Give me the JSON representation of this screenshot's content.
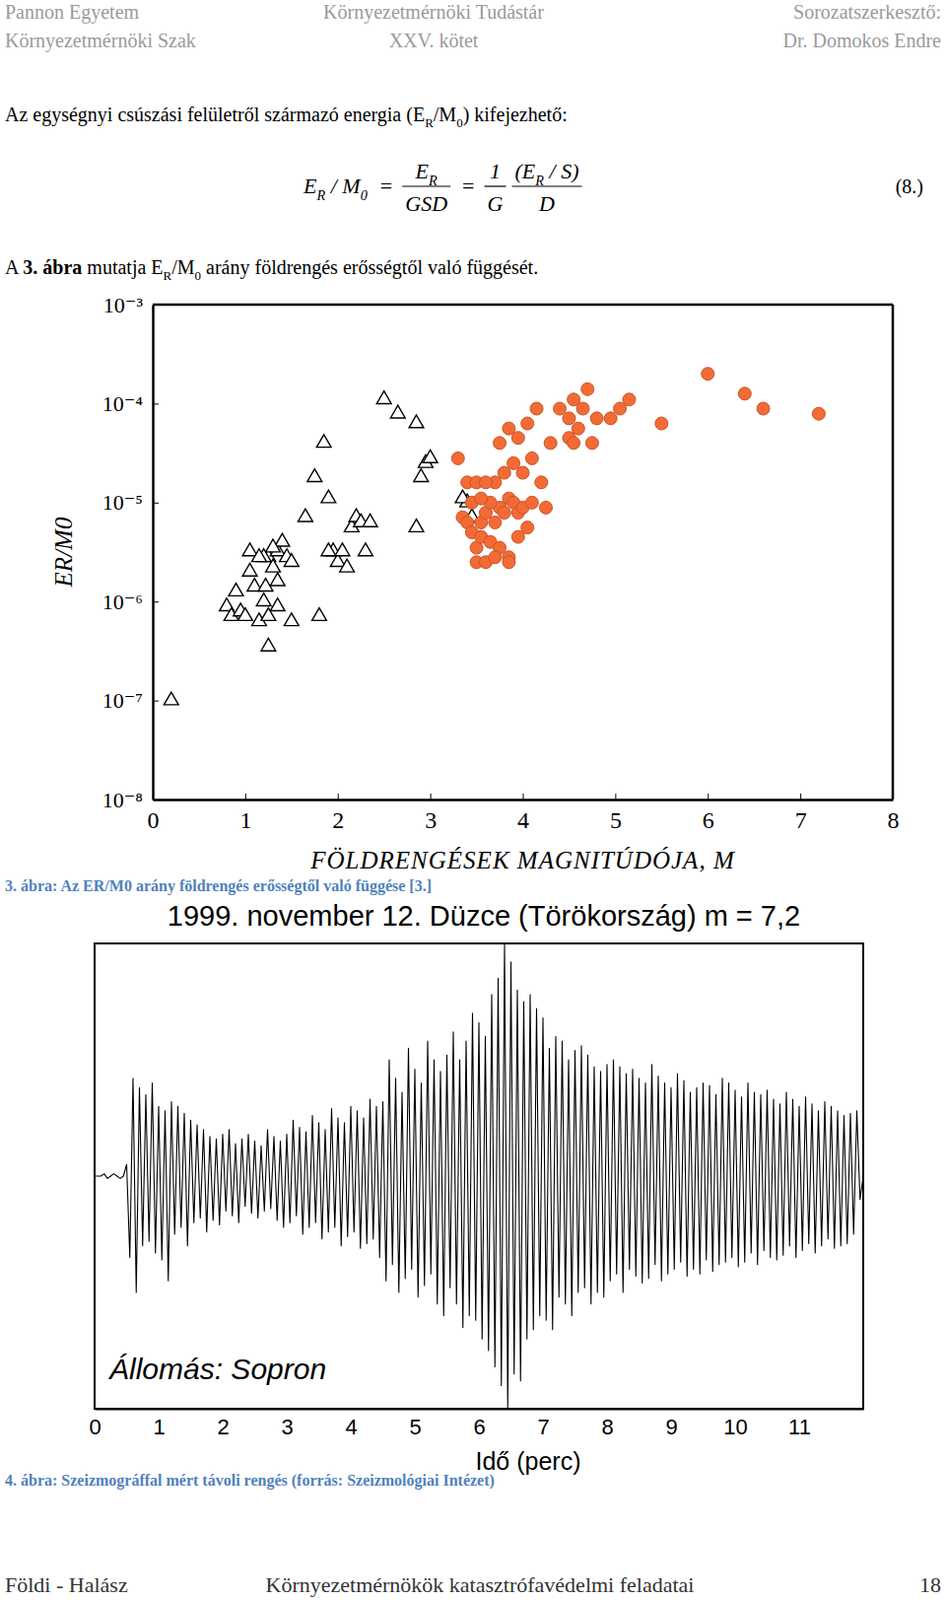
{
  "header": {
    "left": [
      "Pannon Egyetem",
      "Környezetmérnöki Szak"
    ],
    "center": [
      "Környezetmérnöki Tudástár",
      "XXV. kötet"
    ],
    "right": [
      "Sorozatszerkesztő:",
      "Dr. Domokos Endre"
    ]
  },
  "paragraphs": [
    {
      "runs": [
        {
          "text": "Az egységnyi csúszási felületről származó energia (E"
        },
        {
          "text": "R",
          "style": "sub"
        },
        {
          "text": "/M"
        },
        {
          "text": "0",
          "style": "sub"
        },
        {
          "text": ") kifejezhető:"
        }
      ]
    },
    {
      "runs": [
        {
          "text": "A "
        },
        {
          "text": "3. ábra",
          "style": "bold"
        },
        {
          "text": " mutatja E"
        },
        {
          "text": "R",
          "style": "sub"
        },
        {
          "text": "/M"
        },
        {
          "text": "0",
          "style": "sub"
        },
        {
          "text": " arány földrengés erősségtől való függését."
        }
      ]
    }
  ],
  "formula": {
    "lhs": [
      {
        "text": "E"
      },
      {
        "text": "R",
        "style": "sub"
      },
      {
        "text": " / M"
      },
      {
        "text": "0",
        "style": "sub"
      }
    ],
    "equals": [
      "=",
      "="
    ],
    "fractions": [
      {
        "num": [
          {
            "text": "E"
          },
          {
            "text": "R",
            "style": "sub"
          }
        ],
        "den": [
          {
            "text": "GSD"
          }
        ]
      },
      {
        "num": [
          {
            "text": "1"
          }
        ],
        "den": [
          {
            "text": "G"
          }
        ]
      },
      {
        "num": [
          {
            "text": "(E"
          },
          {
            "text": "R",
            "style": "sub"
          },
          {
            "text": " / S)"
          }
        ],
        "den": [
          {
            "text": "D"
          }
        ]
      }
    ],
    "number": "(8.)"
  },
  "chart_data": [
    {
      "type": "scatter",
      "xlabel": "FÖLDRENGÉSEK MAGNITÚDÓJA, M",
      "ylabel": "ER/M0",
      "xlim": [
        0,
        8
      ],
      "ylim": [
        1e-08,
        0.001
      ],
      "xticks": [
        0,
        1,
        2,
        3,
        4,
        5,
        6,
        7,
        8
      ],
      "yticks": [
        {
          "value": 1e-08,
          "label": "10⁻⁸"
        },
        {
          "value": 1e-07,
          "label": "10⁻⁷"
        },
        {
          "value": 1e-06,
          "label": "10⁻⁶"
        },
        {
          "value": 1e-05,
          "label": "10⁻⁵"
        },
        {
          "value": 0.0001,
          "label": "10⁻⁴"
        },
        {
          "value": 0.001,
          "label": "10⁻³"
        }
      ],
      "log": "y",
      "grid": false,
      "series": [
        {
          "marker": "triangle",
          "color": "#000000",
          "x": [
            0.2,
            0.8,
            0.85,
            0.9,
            0.95,
            1.0,
            1.05,
            1.1,
            1.15,
            1.2,
            1.22,
            1.25,
            1.3,
            1.35,
            1.4,
            1.45,
            1.5,
            1.3,
            1.2,
            1.35,
            1.25,
            1.5,
            1.05,
            1.15,
            1.35,
            1.25,
            1.65,
            1.75,
            1.8,
            1.85,
            1.9,
            1.95,
            2.0,
            2.05,
            2.1,
            2.15,
            2.2,
            2.25,
            2.3,
            2.35,
            1.9,
            2.5,
            2.65,
            2.85,
            2.85,
            2.9,
            2.95,
            3.0,
            3.4,
            3.35,
            3.45
          ],
          "values": [
            1e-07,
            8.9e-07,
            7.1e-07,
            1.26e-06,
            7.9e-07,
            7.1e-07,
            2e-06,
            1.41e-06,
            6.3e-07,
            1e-06,
            1.41e-06,
            2.8e-06,
            2.2e-06,
            3.2e-06,
            4e-06,
            2.8e-06,
            2.5e-06,
            3.5e-06,
            2.8e-06,
            8.9e-07,
            3.5e-07,
            6.3e-07,
            3.2e-06,
            2.8e-06,
            1.6e-06,
            7.1e-07,
            7.1e-06,
            1.8e-05,
            7.1e-07,
            4e-05,
            1.1e-05,
            3.2e-06,
            2.5e-06,
            3.2e-06,
            2.2e-06,
            5.6e-06,
            7.1e-06,
            6.3e-06,
            3.2e-06,
            6.3e-06,
            3.2e-06,
            0.00011,
            7.9e-05,
            6.3e-05,
            5.6e-06,
            1.8e-05,
            2.5e-05,
            2.8e-05,
            1e-05,
            1.1e-05,
            7.1e-06
          ]
        },
        {
          "marker": "circle",
          "color": "#f46a35",
          "x": [
            3.3,
            3.35,
            3.4,
            3.45,
            3.5,
            3.5,
            3.55,
            3.6,
            3.55,
            3.6,
            3.65,
            3.7,
            3.7,
            3.75,
            3.8,
            3.85,
            3.9,
            3.95,
            3.65,
            3.4,
            3.5,
            3.6,
            3.45,
            3.55,
            3.75,
            3.85,
            3.95,
            3.8,
            3.9,
            3.95,
            4.0,
            4.05,
            4.1,
            4.2,
            4.25,
            4.0,
            4.1,
            3.75,
            3.85,
            4.15,
            4.3,
            4.4,
            4.5,
            4.5,
            4.55,
            4.55,
            4.6,
            4.65,
            4.7,
            4.75,
            4.8,
            4.95,
            5.05,
            5.15,
            5.5,
            6.0,
            6.4,
            6.6,
            7.2,
            3.85,
            4.05,
            3.7
          ],
          "values": [
            2.8e-05,
            7.1e-06,
            6.3e-06,
            5e-06,
            3.5e-06,
            2.5e-06,
            6.3e-06,
            7.9e-06,
            4.5e-06,
            2.5e-06,
            4e-06,
            6.3e-06,
            1.6e-05,
            8.9e-06,
            7.9e-06,
            1.1e-05,
            1e-05,
            7.9e-06,
            1e-05,
            1.6e-05,
            1.6e-05,
            1.6e-05,
            1e-05,
            1.1e-05,
            3.5e-06,
            2.8e-06,
            4.5e-06,
            2e-05,
            2.5e-05,
            4.5e-05,
            2e-05,
            6.3e-05,
            2.8e-05,
            1.6e-05,
            8.9e-06,
            8.9e-06,
            1e-05,
            4e-05,
            5.6e-05,
            8.9e-05,
            4e-05,
            8.9e-05,
            7.1e-05,
            4.5e-05,
            4e-05,
            0.00011,
            5.6e-05,
            8.9e-05,
            0.00014,
            4e-05,
            7.1e-05,
            7.1e-05,
            8.9e-05,
            0.00011,
            6.3e-05,
            0.0002,
            0.000126,
            8.9e-05,
            7.9e-05,
            2.5e-06,
            5.6e-06,
            2.8e-06
          ]
        }
      ]
    },
    {
      "type": "line",
      "title": "1999. november 12. Düzce (Törökország) m = 7,2",
      "annotation": "Állomás: Sopron",
      "xlabel": "Idő (perc)",
      "xlim": [
        0,
        12
      ],
      "ylim": [
        -1,
        1
      ],
      "xticks": [
        0,
        1,
        2,
        3,
        4,
        5,
        6,
        7,
        8,
        9,
        10,
        11
      ],
      "tick_labels": "x",
      "grid": false,
      "series": [
        {
          "color": "#000000",
          "line_style": "solid",
          "x": [
            0,
            0.05,
            0.1,
            0.15,
            0.2,
            0.25,
            0.3,
            0.35,
            0.4,
            0.45,
            0.5,
            0.55,
            0.6,
            0.65,
            0.7,
            0.75,
            0.8,
            0.85,
            0.9,
            0.95,
            1,
            1.05,
            1.1,
            1.15,
            1.2,
            1.25,
            1.3,
            1.35,
            1.4,
            1.45,
            1.5,
            1.55,
            1.6,
            1.65,
            1.7,
            1.75,
            1.8,
            1.85,
            1.9,
            1.95,
            2,
            2.05,
            2.1,
            2.15,
            2.2,
            2.25,
            2.3,
            2.35,
            2.4,
            2.45,
            2.5,
            2.55,
            2.6,
            2.65,
            2.7,
            2.75,
            2.8,
            2.85,
            2.9,
            2.95,
            3,
            3.05,
            3.1,
            3.15,
            3.2,
            3.25,
            3.3,
            3.35,
            3.4,
            3.45,
            3.5,
            3.55,
            3.6,
            3.65,
            3.7,
            3.75,
            3.8,
            3.85,
            3.9,
            3.95,
            4,
            4.05,
            4.1,
            4.15,
            4.2,
            4.25,
            4.3,
            4.35,
            4.4,
            4.45,
            4.5,
            4.55,
            4.6,
            4.65,
            4.7,
            4.75,
            4.8,
            4.85,
            4.9,
            4.95,
            5,
            5.05,
            5.1,
            5.15,
            5.2,
            5.25,
            5.3,
            5.35,
            5.4,
            5.45,
            5.5,
            5.55,
            5.6,
            5.65,
            5.7,
            5.75,
            5.8,
            5.85,
            5.9,
            5.95,
            6,
            6.05,
            6.1,
            6.15,
            6.2,
            6.25,
            6.3,
            6.35,
            6.4,
            6.45,
            6.5,
            6.55,
            6.6,
            6.65,
            6.7,
            6.75,
            6.8,
            6.85,
            6.9,
            6.95,
            7,
            7.05,
            7.1,
            7.15,
            7.2,
            7.25,
            7.3,
            7.35,
            7.4,
            7.45,
            7.5,
            7.55,
            7.6,
            7.65,
            7.7,
            7.75,
            7.8,
            7.85,
            7.9,
            7.95,
            8,
            8.05,
            8.1,
            8.15,
            8.2,
            8.25,
            8.3,
            8.35,
            8.4,
            8.45,
            8.5,
            8.55,
            8.6,
            8.65,
            8.7,
            8.75,
            8.8,
            8.85,
            8.9,
            8.95,
            9,
            9.05,
            9.1,
            9.15,
            9.2,
            9.25,
            9.3,
            9.35,
            9.4,
            9.45,
            9.5,
            9.55,
            9.6,
            9.65,
            9.7,
            9.75,
            9.8,
            9.85,
            9.9,
            9.95,
            10,
            10.05,
            10.1,
            10.15,
            10.2,
            10.25,
            10.3,
            10.35,
            10.4,
            10.45,
            10.5,
            10.55,
            10.6,
            10.65,
            10.7,
            10.75,
            10.8,
            10.85,
            10.9,
            10.95,
            11,
            11.05,
            11.1,
            11.15,
            11.2,
            11.25,
            11.3,
            11.35,
            11.4,
            11.45,
            11.5,
            11.55,
            11.6,
            11.65,
            11.7,
            11.75,
            11.8,
            11.85,
            11.9,
            11.95,
            12
          ],
          "values": [
            0,
            0,
            0,
            0.01,
            -0.01,
            0,
            0.01,
            0,
            -0.01,
            0,
            0.05,
            -0.35,
            0.42,
            -0.5,
            0.38,
            -0.3,
            0.35,
            -0.28,
            0.4,
            -0.33,
            0.3,
            -0.36,
            0.28,
            -0.45,
            0.32,
            -0.25,
            0.3,
            -0.22,
            0.27,
            -0.3,
            0.24,
            -0.2,
            0.22,
            -0.18,
            0.2,
            -0.24,
            0.17,
            -0.19,
            0.16,
            -0.21,
            0.18,
            -0.15,
            0.2,
            -0.17,
            0.14,
            -0.2,
            0.16,
            -0.13,
            0.18,
            -0.16,
            0.15,
            -0.18,
            0.13,
            -0.15,
            0.2,
            -0.14,
            0.17,
            -0.19,
            0.15,
            -0.22,
            0.18,
            -0.2,
            0.24,
            -0.17,
            0.21,
            -0.25,
            0.19,
            -0.22,
            0.26,
            -0.2,
            0.23,
            -0.27,
            0.2,
            -0.24,
            0.29,
            -0.22,
            0.25,
            -0.3,
            0.23,
            -0.26,
            0.3,
            -0.24,
            0.28,
            -0.31,
            0.25,
            -0.29,
            0.33,
            -0.27,
            0.3,
            -0.35,
            0.32,
            -0.45,
            0.5,
            -0.38,
            0.42,
            -0.5,
            0.36,
            -0.44,
            0.55,
            -0.4,
            0.46,
            -0.52,
            0.4,
            -0.47,
            0.58,
            -0.42,
            0.5,
            -0.55,
            0.45,
            -0.6,
            0.52,
            -0.48,
            0.62,
            -0.55,
            0.5,
            -0.65,
            0.58,
            -0.6,
            0.7,
            -0.62,
            0.66,
            -0.7,
            0.6,
            -0.75,
            0.78,
            -0.82,
            0.85,
            -0.9,
            1.0,
            -1.0,
            0.92,
            -0.85,
            0.8,
            -0.88,
            0.75,
            -0.7,
            0.78,
            -0.66,
            0.72,
            -0.6,
            0.68,
            -0.62,
            0.55,
            -0.66,
            0.6,
            -0.52,
            0.58,
            -0.55,
            0.5,
            -0.6,
            0.54,
            -0.5,
            0.56,
            -0.48,
            0.52,
            -0.55,
            0.47,
            -0.5,
            0.45,
            -0.52,
            0.48,
            -0.45,
            0.5,
            -0.42,
            0.47,
            -0.5,
            0.44,
            -0.4,
            0.46,
            -0.43,
            0.42,
            -0.46,
            0.4,
            -0.44,
            0.48,
            -0.38,
            0.43,
            -0.45,
            0.4,
            -0.42,
            0.38,
            -0.4,
            0.44,
            -0.37,
            0.41,
            -0.43,
            0.36,
            -0.4,
            0.38,
            -0.42,
            0.4,
            -0.36,
            0.39,
            -0.41,
            0.35,
            -0.38,
            0.42,
            -0.37,
            0.4,
            -0.35,
            0.37,
            -0.39,
            0.34,
            -0.37,
            0.4,
            -0.33,
            0.36,
            -0.38,
            0.35,
            -0.32,
            0.37,
            -0.35,
            0.33,
            -0.36,
            0.31,
            -0.34,
            0.36,
            -0.3,
            0.33,
            -0.35,
            0.3,
            -0.32,
            0.34,
            -0.29,
            0.31,
            -0.33,
            0.28,
            -0.3,
            0.32,
            -0.27,
            0.3,
            -0.31,
            0.28,
            -0.3,
            0.26,
            -0.29,
            0.27,
            -0.25,
            0.28,
            -0.1,
            0
          ]
        }
      ]
    }
  ],
  "captions": [
    "3. ábra: Az ER/M0 arány földrengés erősségtől való függése [3.]",
    "4. ábra: Szeizmográffal mért távoli rengés (forrás: Szeizmológiai Intézet)"
  ],
  "footer": {
    "left": "Földi - Halász",
    "center": "Környezetmérnökök katasztrófavédelmi feladatai",
    "page": "18"
  }
}
